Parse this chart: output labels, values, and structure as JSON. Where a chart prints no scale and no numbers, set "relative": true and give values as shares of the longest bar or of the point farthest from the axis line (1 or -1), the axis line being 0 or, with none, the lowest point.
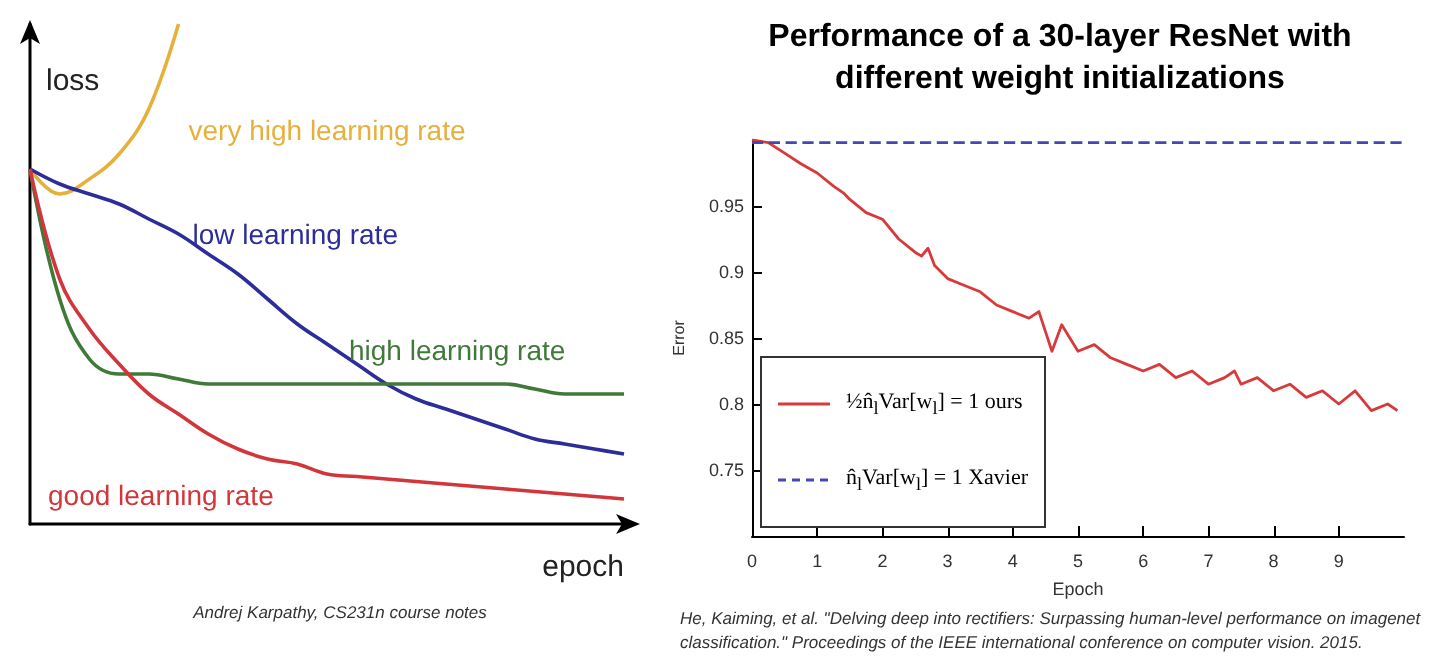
{
  "chart_data": [
    {
      "type": "line",
      "relative": true,
      "ylabel": "loss",
      "xlabel": "epoch",
      "categories": [
        null,
        null,
        null,
        null,
        null,
        null,
        null,
        null,
        null,
        null,
        null,
        null,
        null,
        null,
        null,
        null,
        null,
        null,
        null,
        null,
        null
      ],
      "series": [
        {
          "name": "very high learning rate",
          "color": "#e5b13c",
          "values": [
            0.71,
            0.66,
            0.69,
            0.74,
            0.83,
            1,
            null,
            null,
            null,
            null,
            null,
            null,
            null,
            null,
            null,
            null,
            null,
            null,
            null,
            null,
            null
          ]
        },
        {
          "name": "low learning rate",
          "color": "#2c2c9a",
          "values": [
            0.71,
            0.68,
            0.66,
            0.64,
            0.61,
            0.58,
            0.54,
            0.5,
            0.45,
            0.4,
            0.36,
            0.32,
            0.28,
            0.25,
            0.23,
            0.21,
            0.19,
            0.17,
            0.16,
            0.15,
            0.14
          ]
        },
        {
          "name": "high learning rate",
          "color": "#3f7a38",
          "values": [
            0.71,
            0.45,
            0.33,
            0.3,
            0.3,
            0.29,
            0.28,
            0.28,
            0.28,
            0.28,
            0.28,
            0.28,
            0.28,
            0.28,
            0.28,
            0.28,
            0.28,
            0.27,
            0.26,
            0.26,
            0.26
          ]
        },
        {
          "name": "good learning rate",
          "color": "#d2363b",
          "values": [
            0.71,
            0.49,
            0.39,
            0.32,
            0.26,
            0.22,
            0.18,
            0.15,
            0.13,
            0.12,
            0.1,
            0.095,
            0.09,
            0.085,
            0.08,
            0.075,
            0.07,
            0.065,
            0.06,
            0.055,
            0.05
          ]
        }
      ],
      "annotations": [
        "Andrej Karpathy, CS231n course notes"
      ]
    },
    {
      "type": "line",
      "title": "Performance of a 30-layer ResNet with different weight initializations",
      "xlabel": "Epoch",
      "ylabel": "Error",
      "xlim": [
        0,
        10
      ],
      "xticks": [
        0,
        1,
        2,
        3,
        4,
        5,
        6,
        7,
        8,
        9
      ],
      "ylim": [
        0.7,
        1.0
      ],
      "yticks": [
        {
          "value": 0.75,
          "label": "0.75"
        },
        {
          "value": 0.8,
          "label": "0.8"
        },
        {
          "value": 0.85,
          "label": "0.85"
        },
        {
          "value": 0.9,
          "label": "0.9"
        },
        {
          "value": 0.95,
          "label": "0.95"
        }
      ],
      "legend": "bottom left",
      "series": [
        {
          "name": "½n̂$_{l}$Var[w$_{l}$] = 1  ours",
          "color": "#d8393a",
          "line_style": "solid",
          "x": [
            0,
            0.25,
            0.5,
            0.75,
            1,
            1.25,
            1.4,
            1.5,
            1.75,
            2,
            2.25,
            2.5,
            2.6,
            2.7,
            2.8,
            3,
            3.25,
            3.5,
            3.75,
            4,
            4.25,
            4.4,
            4.5,
            4.6,
            4.75,
            5,
            5.25,
            5.5,
            5.75,
            6,
            6.25,
            6.5,
            6.75,
            7,
            7.25,
            7.4,
            7.5,
            7.75,
            8,
            8.25,
            8.5,
            8.75,
            9,
            9.25,
            9.5,
            9.75,
            9.9
          ],
          "values": [
            1.0,
            0.998,
            0.99,
            0.982,
            0.975,
            0.965,
            0.96,
            0.955,
            0.945,
            0.94,
            0.925,
            0.915,
            0.912,
            0.918,
            0.905,
            0.895,
            0.89,
            0.885,
            0.875,
            0.87,
            0.865,
            0.87,
            0.855,
            0.84,
            0.86,
            0.84,
            0.845,
            0.835,
            0.83,
            0.825,
            0.83,
            0.82,
            0.825,
            0.815,
            0.82,
            0.825,
            0.815,
            0.82,
            0.81,
            0.815,
            0.805,
            0.81,
            0.8,
            0.81,
            0.795,
            0.8,
            0.795
          ]
        },
        {
          "name": "n̂$_{l}$Var[w$_{l}$] = 1  Xavier",
          "color": "#4646b4",
          "line_style": "dashed",
          "x": [
            0,
            10
          ],
          "values": [
            0.998,
            0.998
          ]
        }
      ],
      "annotations": [
        "He, Kaiming, et al. \"Delving deep into rectifiers: Surpassing human-level performance on imagenet classification.\" Proceedings of the IEEE international conference on computer vision. 2015."
      ]
    }
  ]
}
